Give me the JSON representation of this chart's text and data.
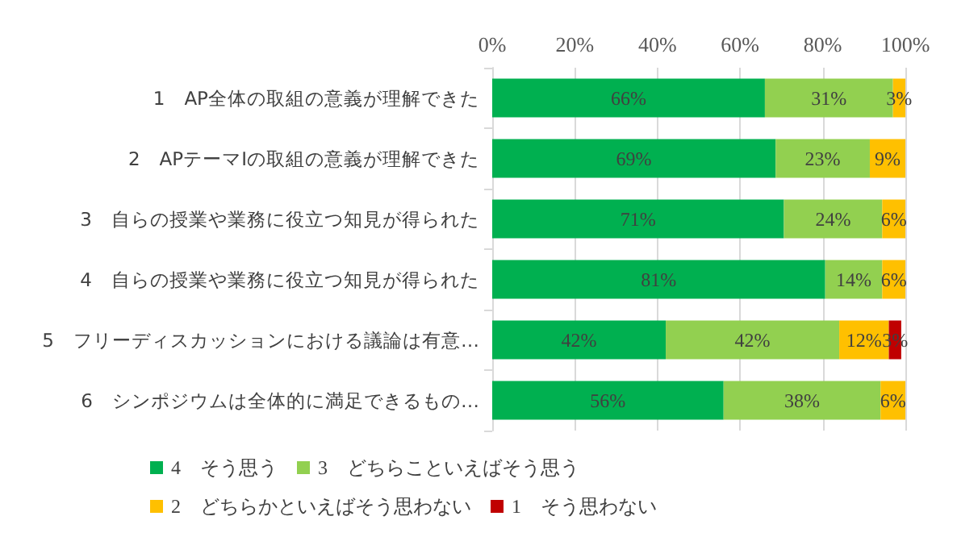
{
  "chart_data": {
    "type": "bar",
    "orientation": "horizontal",
    "stacked": true,
    "grid": "x",
    "legend": "bottom",
    "categories": [
      "1　AP全体の取組の意義が理解できた",
      "2　APテーマⅠの取組の意義が理解できた",
      "3　自らの授業や業務に役立つ知見が得られた",
      "4　自らの授業や業務に役立つ知見が得られた",
      "5　フリーディスカッションにおける議論は有意…",
      "6　シンポジウムは全体的に満足できるもの…"
    ],
    "xlim": [
      0,
      100
    ],
    "xticks": [
      {
        "value": 0,
        "label": "0%"
      },
      {
        "value": 20,
        "label": "20%"
      },
      {
        "value": 40,
        "label": "40%"
      },
      {
        "value": 60,
        "label": "60%"
      },
      {
        "value": 80,
        "label": "80%"
      },
      {
        "value": 100,
        "label": "100%"
      }
    ],
    "series": [
      {
        "name": "4　そう思う",
        "color": "#00b050",
        "values": [
          66,
          68.6,
          70.6,
          80.6,
          42,
          56
        ],
        "value_labels": [
          "66%",
          "69%",
          "71%",
          "81%",
          "42%",
          "56%"
        ]
      },
      {
        "name": "3　どちらこといえばそう思う",
        "color": "#92d050",
        "values": [
          31,
          22.8,
          23.8,
          13.8,
          42,
          38
        ],
        "value_labels": [
          "31%",
          "23%",
          "24%",
          "14%",
          "42%",
          "38%"
        ]
      },
      {
        "name": "2　どちらかといえばそう思わない",
        "color": "#ffc000",
        "values": [
          3,
          8.6,
          5.6,
          5.6,
          12,
          6
        ],
        "value_labels": [
          "3%",
          "9%",
          "6%",
          "6%",
          "12%",
          "6%"
        ]
      },
      {
        "name": "1　そう思わない",
        "color": "#c00000",
        "values": [
          null,
          null,
          null,
          null,
          3,
          null
        ],
        "value_labels": [
          null,
          null,
          null,
          null,
          "3%",
          null
        ]
      }
    ]
  }
}
